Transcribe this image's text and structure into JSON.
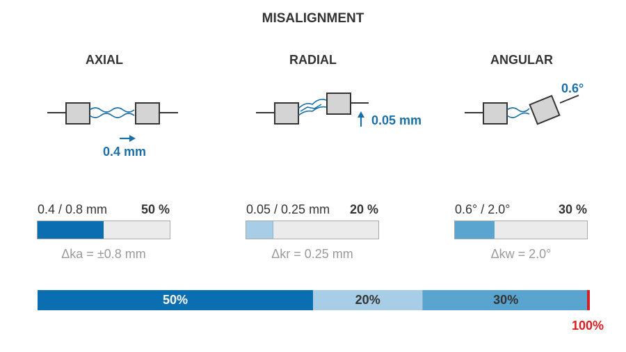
{
  "title": "MISALIGNMENT",
  "colors": {
    "dark_blue": "#0b6eb0",
    "light_blue": "#a8cde6",
    "mid_blue": "#5aa4d0",
    "bar_bg": "#ebebeb",
    "label_blue": "#1a6fa6",
    "total_red": "#e01b1b",
    "endcap_red": "#d0202a"
  },
  "columns": [
    {
      "label": "AXIAL",
      "callout": "0.4 mm",
      "ratio": "0.4 / 0.8 mm",
      "percent_label": "50 %",
      "fill_fraction": 0.5,
      "tolerance": "Δka = ±0.8 mm"
    },
    {
      "label": "RADIAL",
      "callout": "0.05 mm",
      "ratio": "0.05 / 0.25 mm",
      "percent_label": "20 %",
      "fill_fraction": 0.2,
      "tolerance": "Δkr = 0.25 mm"
    },
    {
      "label": "ANGULAR",
      "callout": "0.6°",
      "ratio": "0.6° / 2.0°",
      "percent_label": "30 %",
      "fill_fraction": 0.3,
      "tolerance": "Δkw = 2.0°"
    }
  ],
  "total_bar": {
    "segments": [
      {
        "label": "50%",
        "fraction": 0.5
      },
      {
        "label": "20%",
        "fraction": 0.2
      },
      {
        "label": "30%",
        "fraction": 0.3
      }
    ],
    "total_label": "100%"
  }
}
